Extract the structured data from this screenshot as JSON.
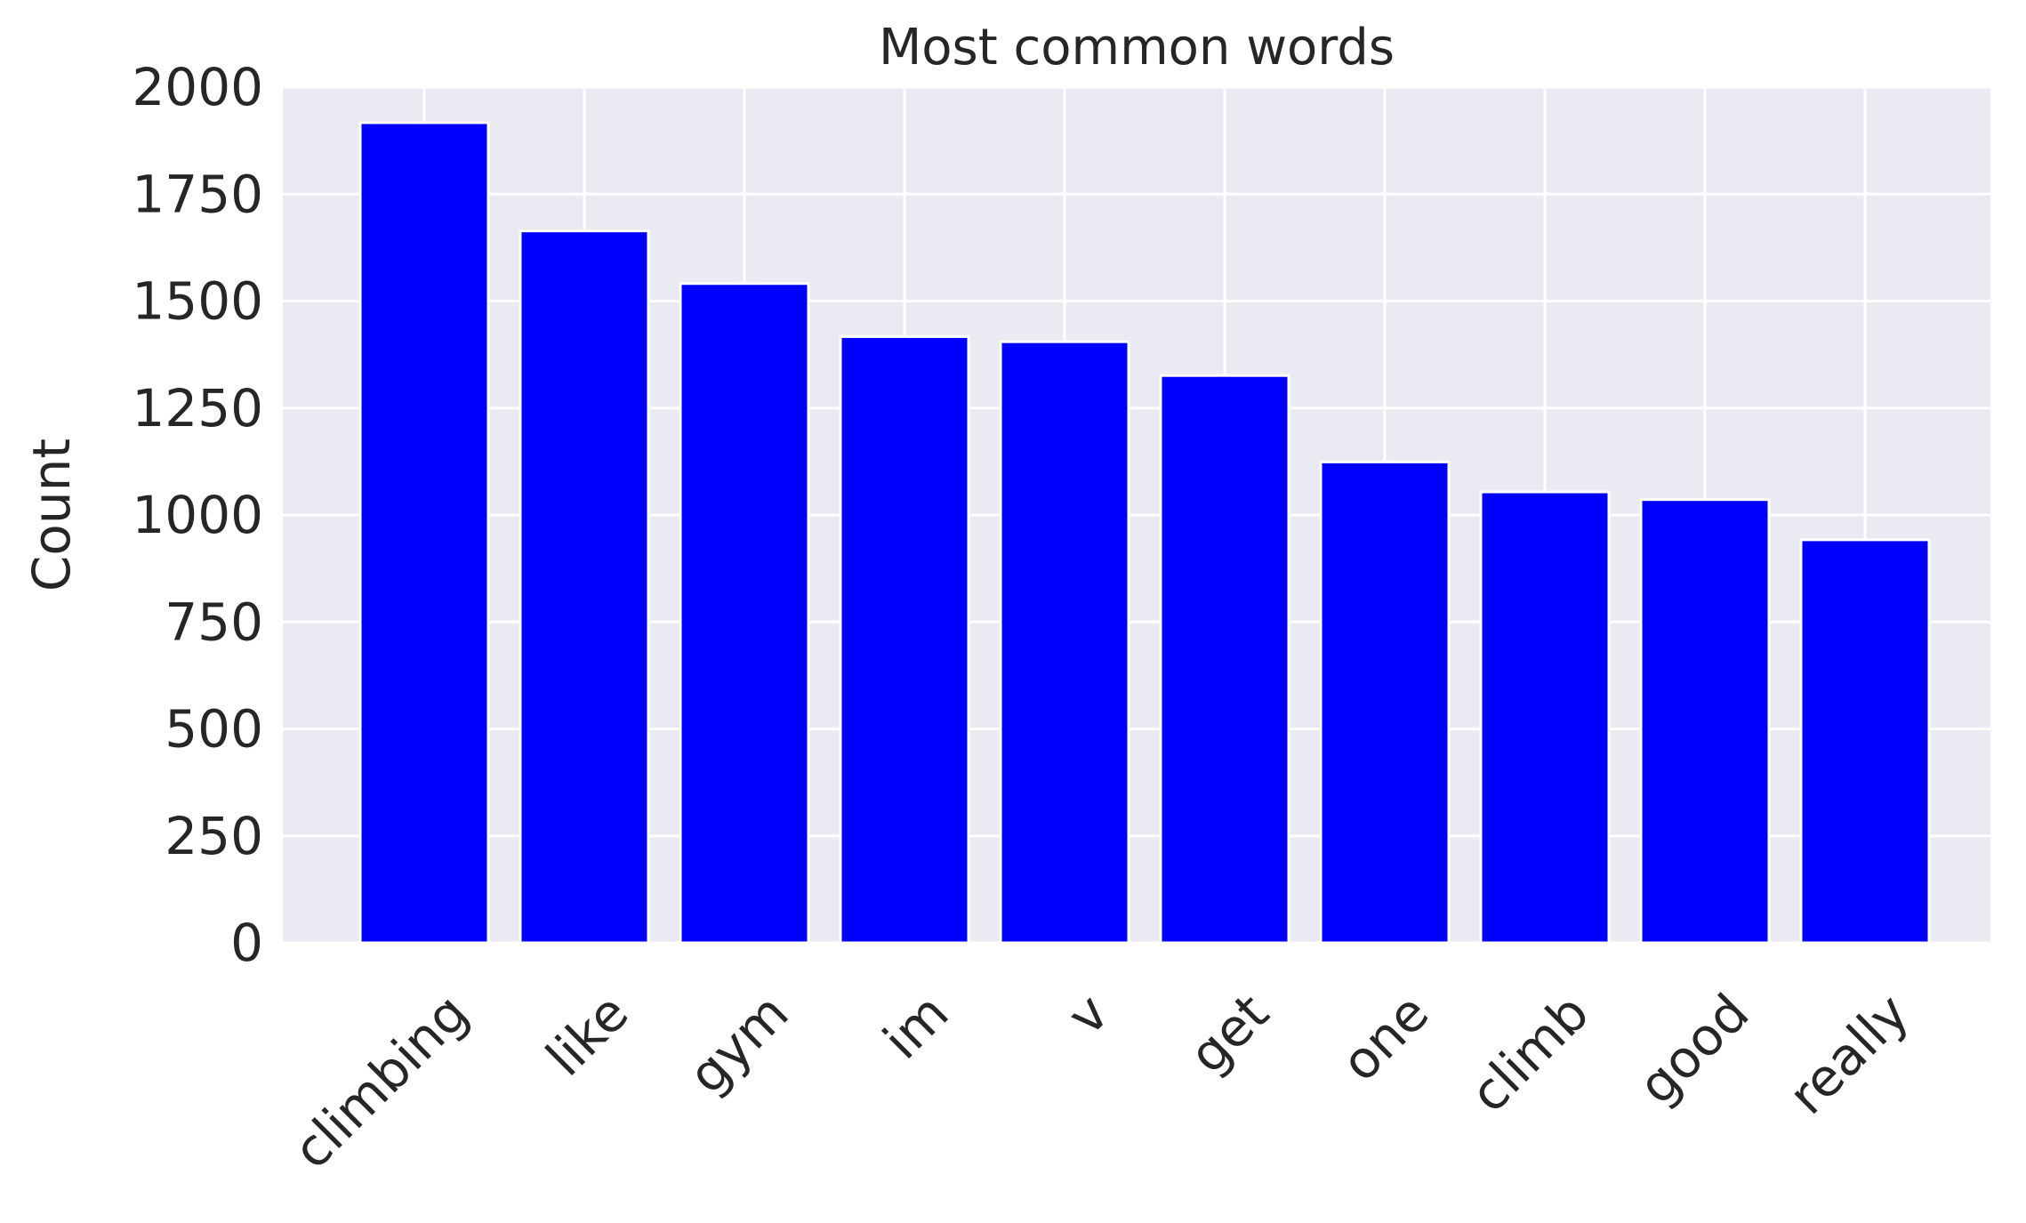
{
  "chart_data": {
    "type": "bar",
    "title": "Most common words",
    "xlabel": "",
    "ylabel": "Count",
    "categories": [
      "climbing",
      "like",
      "gym",
      "im",
      "v",
      "get",
      "one",
      "climb",
      "good",
      "really"
    ],
    "values": [
      1917,
      1664,
      1541,
      1417,
      1405,
      1326,
      1124,
      1054,
      1036,
      942
    ],
    "ylim": [
      0,
      2000
    ],
    "yticks": [
      0,
      250,
      500,
      750,
      1000,
      1250,
      1500,
      1750,
      2000
    ],
    "ytick_labels": [
      "0",
      "250",
      "500",
      "750",
      "1000",
      "1250",
      "1500",
      "1750",
      "2000"
    ],
    "grid": true,
    "bar_color": "#0000ff",
    "plot_background": "#eaeaf2",
    "grid_color": "#ffffff"
  }
}
